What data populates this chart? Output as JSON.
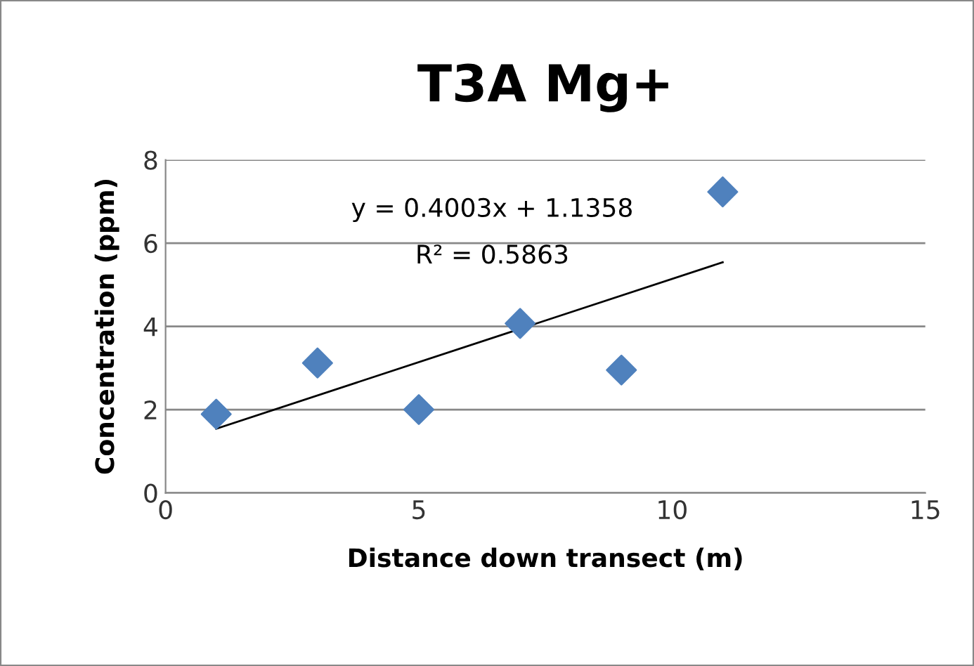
{
  "chart_data": {
    "type": "scatter",
    "title": "T3A Mg+",
    "xlabel": "Distance down transect (m)",
    "ylabel": "Concentration (ppm)",
    "x": [
      1,
      3,
      5,
      7,
      9,
      11
    ],
    "series": [
      {
        "color": "#4f81bd",
        "marker": "diamond",
        "values": [
          1.89,
          3.12,
          2.0,
          4.07,
          2.95,
          7.23
        ]
      },
      {
        "type": "line",
        "color": "#000000",
        "marker": "none",
        "line_style": "solid",
        "x": [
          1,
          11
        ],
        "values": [
          1.54,
          5.54
        ]
      }
    ],
    "annotations": [
      "y = 0.4003x + 1.1358",
      "R² = 0.5863"
    ],
    "xlim": [
      0,
      15
    ],
    "xticks": [
      0,
      5,
      10,
      15
    ],
    "ylim": [
      0,
      8
    ],
    "yticks": [
      0,
      2,
      4,
      6,
      8
    ],
    "grid": "y",
    "legend": false
  }
}
